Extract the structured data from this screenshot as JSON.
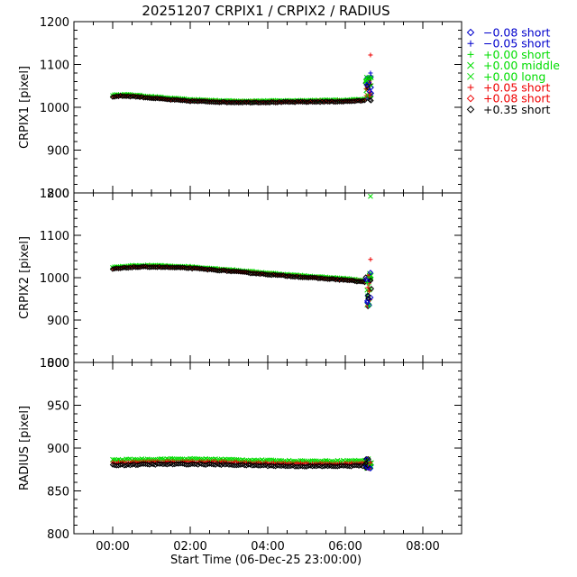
{
  "title": "20251207 CRPIX1 / CRPIX2 / RADIUS",
  "xlabel": "Start Time (06-Dec-25 23:00:00)",
  "legend": [
    {
      "label": "−0.08 short",
      "color": "#0000cc",
      "symbol": "diamond"
    },
    {
      "label": "−0.05 short",
      "color": "#0000cc",
      "symbol": "plus"
    },
    {
      "label": "+0.00 short",
      "color": "#00dd00",
      "symbol": "plus"
    },
    {
      "label": "+0.00 middle",
      "color": "#00dd00",
      "symbol": "cross"
    },
    {
      "label": "+0.00 long",
      "color": "#00dd00",
      "symbol": "cross"
    },
    {
      "label": "+0.05 short",
      "color": "#ee0000",
      "symbol": "plus"
    },
    {
      "label": "+0.08 short",
      "color": "#ee0000",
      "symbol": "diamond"
    },
    {
      "label": "+0.35 short",
      "color": "#000000",
      "symbol": "diamond"
    }
  ],
  "chart_data": [
    {
      "type": "scatter",
      "ylabel": "CRPIX1 [pixel]",
      "xlim": [
        -1,
        9
      ],
      "ylim": [
        800,
        1200
      ],
      "x_ticks": [
        0,
        2,
        4,
        6,
        8
      ],
      "x_tick_labels": [
        "00:00",
        "02:00",
        "04:00",
        "06:00",
        "08:00"
      ],
      "y_ticks": [
        800,
        900,
        1000,
        1100,
        1200
      ],
      "series_trend": [
        [
          0,
          1026
        ],
        [
          0.2,
          1028
        ],
        [
          0.5,
          1027
        ],
        [
          1,
          1023
        ],
        [
          1.5,
          1019
        ],
        [
          2,
          1016
        ],
        [
          3,
          1013
        ],
        [
          4,
          1013
        ],
        [
          5,
          1014
        ],
        [
          6,
          1015
        ],
        [
          6.5,
          1017
        ]
      ],
      "burst": {
        "x": 6.6,
        "range": [
          1010,
          1075
        ]
      },
      "outliers": [
        {
          "x": 6.65,
          "y": 1122,
          "series": "+0.05 short"
        },
        {
          "x": 6.65,
          "y": 1080,
          "series": "−0.05 short"
        },
        {
          "x": 6.6,
          "y": 1066,
          "series": "+0.00 short"
        }
      ]
    },
    {
      "type": "scatter",
      "ylabel": "CRPIX2 [pixel]",
      "xlim": [
        -1,
        9
      ],
      "ylim": [
        800,
        1200
      ],
      "x_ticks": [
        0,
        2,
        4,
        6,
        8
      ],
      "x_tick_labels": [
        "00:00",
        "02:00",
        "04:00",
        "06:00",
        "08:00"
      ],
      "y_ticks": [
        800,
        900,
        1000,
        1100,
        1200
      ],
      "series_trend": [
        [
          0,
          1022
        ],
        [
          0.5,
          1026
        ],
        [
          1,
          1027
        ],
        [
          2,
          1024
        ],
        [
          3,
          1017
        ],
        [
          4,
          1009
        ],
        [
          5,
          1002
        ],
        [
          6,
          996
        ],
        [
          6.5,
          991
        ]
      ],
      "burst": {
        "x": 6.6,
        "range": [
          930,
          1010
        ]
      },
      "outliers": [
        {
          "x": 6.65,
          "y": 1192,
          "series": "+0.00 middle"
        },
        {
          "x": 6.65,
          "y": 1043,
          "series": "+0.05 short"
        },
        {
          "x": 6.65,
          "y": 1012,
          "series": "−0.08 short"
        }
      ]
    },
    {
      "type": "scatter",
      "ylabel": "RADIUS [pixel]",
      "xlim": [
        -1,
        9
      ],
      "ylim": [
        800,
        1000
      ],
      "x_ticks": [
        0,
        2,
        4,
        6,
        8
      ],
      "x_tick_labels": [
        "00:00",
        "02:00",
        "04:00",
        "06:00",
        "08:00"
      ],
      "y_ticks": [
        800,
        850,
        900,
        950,
        1000
      ],
      "series_levels": [
        {
          "series": "+0.00 short",
          "y": 886
        },
        {
          "series": "+0.05 short",
          "y": 883
        },
        {
          "series": "+0.35 short",
          "y": 880
        }
      ],
      "burst": {
        "x": 6.6,
        "range": [
          876,
          888
        ]
      }
    }
  ]
}
